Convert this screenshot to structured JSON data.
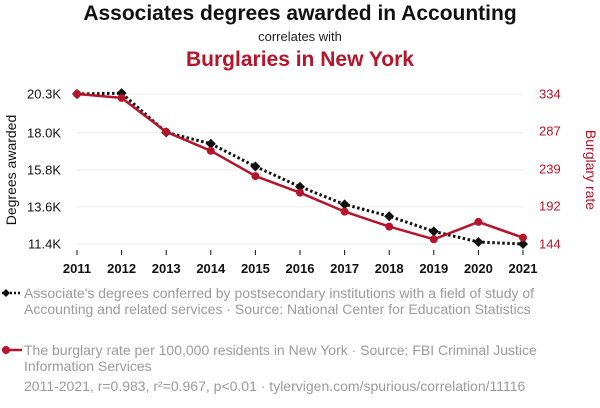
{
  "header": {
    "title": "Associates degrees awarded in Accounting",
    "subtitle": "correlates with",
    "title2": "Burglaries in New York"
  },
  "chart_data": {
    "type": "line",
    "x": [
      2011,
      2012,
      2013,
      2014,
      2015,
      2016,
      2017,
      2018,
      2019,
      2020,
      2021
    ],
    "xlabels": [
      "2011",
      "2012",
      "2013",
      "2014",
      "2015",
      "2016",
      "2017",
      "2018",
      "2019",
      "2020",
      "2021"
    ],
    "series": [
      {
        "axis": "left",
        "color": "#111111",
        "marker": "diamond",
        "style": "dotted",
        "values": [
          20300,
          20350,
          18020,
          17350,
          16000,
          14800,
          13750,
          13050,
          12150,
          11520,
          11400
        ]
      },
      {
        "axis": "right",
        "color": "#b5152b",
        "marker": "circle",
        "style": "solid",
        "values": [
          334,
          329,
          286,
          262,
          230,
          209,
          185,
          166,
          150,
          172,
          152
        ]
      }
    ],
    "y_left": {
      "label": "Degrees awarded",
      "ticks": [
        11400,
        13600,
        15800,
        18000,
        20300
      ],
      "tick_labels": [
        "11.4K",
        "13.6K",
        "15.8K",
        "18.0K",
        "20.3K"
      ],
      "range": [
        11400,
        20300
      ]
    },
    "y_right": {
      "label": "Burglary rate",
      "ticks": [
        144,
        192,
        239,
        287,
        334
      ],
      "tick_labels": [
        "144",
        "192",
        "239",
        "287",
        "334"
      ],
      "range": [
        144,
        334
      ],
      "color": "#b5152b"
    },
    "grid": "horizontal"
  },
  "legend": [
    {
      "text": "Associate's degrees conferred by postsecondary institutions with a field of study of Accounting and related services · Source: National Center for Education Statistics",
      "color": "#111111",
      "marker": "diamond"
    },
    {
      "text": "The burglary rate per 100,000 residents in New York · Source: FBI Criminal Justice Information Services",
      "color": "#b5152b",
      "marker": "circle"
    }
  ],
  "footer": "2011-2021, r=0.983, r²=0.967, p<0.01 · tylervigen.com/spurious/correlation/11116"
}
